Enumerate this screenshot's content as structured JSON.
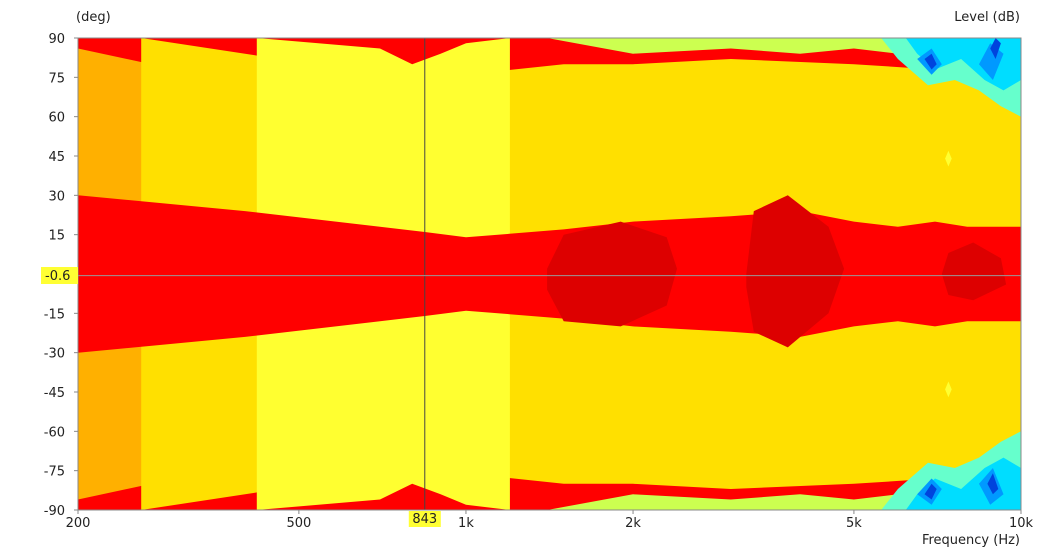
{
  "chart_data": {
    "type": "heatmap",
    "title": "",
    "y_unit_label": "(deg)",
    "level_label": "Level  (dB)",
    "xlabel": "Frequency  (Hz)",
    "x_scale": "log",
    "xlim": [
      200,
      10000
    ],
    "ylim": [
      -90,
      90
    ],
    "x_ticks": [
      {
        "value": 200,
        "label": "200"
      },
      {
        "value": 500,
        "label": "500"
      },
      {
        "value": 1000,
        "label": "1k"
      },
      {
        "value": 2000,
        "label": "2k"
      },
      {
        "value": 5000,
        "label": "5k"
      },
      {
        "value": 10000,
        "label": "10k"
      }
    ],
    "y_ticks": [
      {
        "value": 90,
        "label": "90"
      },
      {
        "value": 75,
        "label": "75"
      },
      {
        "value": 60,
        "label": "60"
      },
      {
        "value": 45,
        "label": "45"
      },
      {
        "value": 30,
        "label": "30"
      },
      {
        "value": 15,
        "label": "15"
      },
      {
        "value": -15,
        "label": "-15"
      },
      {
        "value": -30,
        "label": "-30"
      },
      {
        "value": -45,
        "label": "-45"
      },
      {
        "value": -60,
        "label": "-60"
      },
      {
        "value": -75,
        "label": "-75"
      },
      {
        "value": -90,
        "label": "-90"
      }
    ],
    "cursor": {
      "x": 843,
      "x_label": "843",
      "y": -0.6,
      "y_label": "-0.6"
    },
    "level_colors": [
      "#dd0000",
      "#ff0000",
      "#ff5000",
      "#ff8000",
      "#ffb000",
      "#ffe000",
      "#ffff30",
      "#ccff50",
      "#66ffcc",
      "#00ddff",
      "#0099ff",
      "#0044dd"
    ],
    "contours": [
      {
        "band": 2,
        "points": [
          [
            200,
            52
          ],
          [
            300,
            45
          ],
          [
            500,
            38
          ],
          [
            700,
            34
          ],
          [
            843,
            33
          ],
          [
            1000,
            34
          ],
          [
            1500,
            36
          ],
          [
            2000,
            38
          ],
          [
            3000,
            40
          ],
          [
            5000,
            42
          ],
          [
            7000,
            43
          ],
          [
            10000,
            44
          ],
          [
            10000,
            -44
          ],
          [
            7000,
            -43
          ],
          [
            5000,
            -42
          ],
          [
            3000,
            -40
          ],
          [
            2000,
            -38
          ],
          [
            1500,
            -36
          ],
          [
            1000,
            -34
          ],
          [
            843,
            -33
          ],
          [
            700,
            -34
          ],
          [
            500,
            -38
          ],
          [
            300,
            -45
          ],
          [
            200,
            -52
          ]
        ]
      },
      {
        "band": 3,
        "points": [
          [
            200,
            70
          ],
          [
            300,
            62
          ],
          [
            500,
            54
          ],
          [
            700,
            48
          ],
          [
            780,
            40
          ],
          [
            843,
            44
          ],
          [
            1000,
            48
          ],
          [
            1500,
            52
          ],
          [
            2000,
            56
          ],
          [
            3000,
            58
          ],
          [
            5000,
            58
          ],
          [
            7000,
            60
          ],
          [
            10000,
            62
          ],
          [
            10000,
            -62
          ],
          [
            7000,
            -60
          ],
          [
            5000,
            -58
          ],
          [
            3000,
            -58
          ],
          [
            2000,
            -56
          ],
          [
            1500,
            -52
          ],
          [
            1000,
            -48
          ],
          [
            843,
            -44
          ],
          [
            780,
            -40
          ],
          [
            700,
            -48
          ],
          [
            500,
            -54
          ],
          [
            300,
            -62
          ],
          [
            200,
            -70
          ]
        ]
      },
      {
        "band": 4,
        "points": [
          [
            200,
            86
          ],
          [
            300,
            78
          ],
          [
            500,
            70
          ],
          [
            700,
            64
          ],
          [
            780,
            52
          ],
          [
            843,
            58
          ],
          [
            1000,
            64
          ],
          [
            1500,
            68
          ],
          [
            2000,
            70
          ],
          [
            3000,
            72
          ],
          [
            5000,
            70
          ],
          [
            7000,
            70
          ],
          [
            10000,
            72
          ],
          [
            10000,
            -72
          ],
          [
            7000,
            -70
          ],
          [
            5000,
            -70
          ],
          [
            3000,
            -72
          ],
          [
            2000,
            -70
          ],
          [
            1500,
            -68
          ],
          [
            1000,
            -64
          ],
          [
            843,
            -58
          ],
          [
            780,
            -52
          ],
          [
            700,
            -64
          ],
          [
            500,
            -70
          ],
          [
            300,
            -78
          ],
          [
            200,
            -86
          ]
        ]
      },
      {
        "band": 5,
        "points": [
          [
            260,
            90
          ],
          [
            400,
            84
          ],
          [
            600,
            78
          ],
          [
            760,
            66
          ],
          [
            843,
            70
          ],
          [
            1000,
            76
          ],
          [
            1500,
            80
          ],
          [
            2000,
            80
          ],
          [
            3000,
            82
          ],
          [
            5000,
            80
          ],
          [
            7000,
            78
          ],
          [
            10000,
            80
          ],
          [
            10000,
            -80
          ],
          [
            7000,
            -78
          ],
          [
            5000,
            -80
          ],
          [
            3000,
            -82
          ],
          [
            2000,
            -80
          ],
          [
            1500,
            -80
          ],
          [
            1000,
            -76
          ],
          [
            843,
            -70
          ],
          [
            760,
            -66
          ],
          [
            600,
            -78
          ],
          [
            400,
            -84
          ],
          [
            260,
            -90
          ]
        ]
      },
      {
        "band": 6,
        "points": [
          [
            420,
            90
          ],
          [
            700,
            86
          ],
          [
            800,
            80
          ],
          [
            900,
            84
          ],
          [
            1000,
            88
          ],
          [
            1200,
            90
          ],
          [
            1200,
            -90
          ],
          [
            1000,
            -88
          ],
          [
            900,
            -84
          ],
          [
            800,
            -80
          ],
          [
            700,
            -86
          ],
          [
            420,
            -90
          ]
        ]
      },
      {
        "band": 1,
        "points": [
          [
            200,
            30
          ],
          [
            400,
            24
          ],
          [
            700,
            18
          ],
          [
            843,
            16
          ],
          [
            1000,
            14
          ],
          [
            1500,
            17
          ],
          [
            2000,
            20
          ],
          [
            3000,
            22
          ],
          [
            4000,
            24
          ],
          [
            5000,
            20
          ],
          [
            6000,
            18
          ],
          [
            7000,
            20
          ],
          [
            8000,
            18
          ],
          [
            10000,
            18
          ],
          [
            10000,
            -18
          ],
          [
            8000,
            -18
          ],
          [
            7000,
            -20
          ],
          [
            6000,
            -18
          ],
          [
            5000,
            -20
          ],
          [
            4000,
            -24
          ],
          [
            3000,
            -22
          ],
          [
            2000,
            -20
          ],
          [
            1500,
            -17
          ],
          [
            1000,
            -14
          ],
          [
            843,
            -16
          ],
          [
            700,
            -18
          ],
          [
            400,
            -24
          ],
          [
            200,
            -30
          ]
        ]
      },
      {
        "band": 0,
        "points": [
          [
            1400,
            2
          ],
          [
            1500,
            15
          ],
          [
            1900,
            20
          ],
          [
            2300,
            14
          ],
          [
            2400,
            2
          ],
          [
            2300,
            -12
          ],
          [
            1900,
            -20
          ],
          [
            1500,
            -18
          ],
          [
            1400,
            -6
          ]
        ]
      },
      {
        "band": 0,
        "points": [
          [
            3200,
            0
          ],
          [
            3300,
            24
          ],
          [
            3800,
            30
          ],
          [
            4500,
            18
          ],
          [
            4800,
            2
          ],
          [
            4500,
            -15
          ],
          [
            3800,
            -28
          ],
          [
            3300,
            -22
          ],
          [
            3200,
            -5
          ]
        ]
      },
      {
        "band": 0,
        "points": [
          [
            7200,
            0
          ],
          [
            7400,
            8
          ],
          [
            8200,
            12
          ],
          [
            9200,
            6
          ],
          [
            9400,
            -4
          ],
          [
            8200,
            -10
          ],
          [
            7400,
            -8
          ]
        ]
      },
      {
        "band": 7,
        "points": [
          [
            1400,
            90
          ],
          [
            2000,
            84
          ],
          [
            3000,
            86
          ],
          [
            4000,
            84
          ],
          [
            5000,
            86
          ],
          [
            6000,
            84
          ],
          [
            7000,
            84
          ],
          [
            8000,
            82
          ],
          [
            10000,
            80
          ],
          [
            10000,
            90
          ]
        ]
      },
      {
        "band": 7,
        "points": [
          [
            1400,
            -90
          ],
          [
            2000,
            -84
          ],
          [
            3000,
            -86
          ],
          [
            4000,
            -84
          ],
          [
            5000,
            -86
          ],
          [
            6000,
            -84
          ],
          [
            7000,
            -84
          ],
          [
            8000,
            -82
          ],
          [
            10000,
            -80
          ],
          [
            10000,
            -90
          ]
        ]
      },
      {
        "band": 8,
        "points": [
          [
            5600,
            90
          ],
          [
            6000,
            82
          ],
          [
            6800,
            72
          ],
          [
            7600,
            74
          ],
          [
            8400,
            70
          ],
          [
            9200,
            64
          ],
          [
            10000,
            60
          ],
          [
            10000,
            90
          ]
        ]
      },
      {
        "band": 8,
        "points": [
          [
            5600,
            -90
          ],
          [
            6000,
            -82
          ],
          [
            6800,
            -72
          ],
          [
            7600,
            -74
          ],
          [
            8400,
            -70
          ],
          [
            9200,
            -64
          ],
          [
            10000,
            -60
          ],
          [
            10000,
            -90
          ]
        ]
      },
      {
        "band": 9,
        "points": [
          [
            6200,
            90
          ],
          [
            6500,
            84
          ],
          [
            7000,
            78
          ],
          [
            7800,
            82
          ],
          [
            8600,
            74
          ],
          [
            9300,
            70
          ],
          [
            10000,
            74
          ],
          [
            10000,
            90
          ]
        ]
      },
      {
        "band": 9,
        "points": [
          [
            6200,
            -90
          ],
          [
            6500,
            -84
          ],
          [
            7000,
            -78
          ],
          [
            7800,
            -82
          ],
          [
            8600,
            -74
          ],
          [
            9300,
            -70
          ],
          [
            10000,
            -74
          ],
          [
            10000,
            -90
          ]
        ]
      },
      {
        "band": 10,
        "points": [
          [
            6500,
            82
          ],
          [
            6900,
            86
          ],
          [
            7200,
            80
          ],
          [
            6900,
            76
          ]
        ]
      },
      {
        "band": 10,
        "points": [
          [
            8400,
            80
          ],
          [
            8800,
            88
          ],
          [
            9300,
            84
          ],
          [
            8900,
            74
          ]
        ]
      },
      {
        "band": 10,
        "points": [
          [
            6500,
            -84
          ],
          [
            6900,
            -88
          ],
          [
            7200,
            -82
          ],
          [
            6900,
            -78
          ]
        ]
      },
      {
        "band": 10,
        "points": [
          [
            8400,
            -80
          ],
          [
            8800,
            -88
          ],
          [
            9300,
            -84
          ],
          [
            8900,
            -74
          ]
        ]
      },
      {
        "band": 11,
        "points": [
          [
            6700,
            82
          ],
          [
            6900,
            84
          ],
          [
            7050,
            80
          ],
          [
            6900,
            78
          ]
        ]
      },
      {
        "band": 11,
        "points": [
          [
            8800,
            86
          ],
          [
            9000,
            90
          ],
          [
            9200,
            88
          ],
          [
            9000,
            82
          ]
        ]
      },
      {
        "band": 11,
        "points": [
          [
            6700,
            -84
          ],
          [
            6900,
            -86
          ],
          [
            7050,
            -82
          ],
          [
            6900,
            -80
          ]
        ]
      },
      {
        "band": 11,
        "points": [
          [
            8700,
            -80
          ],
          [
            8900,
            -84
          ],
          [
            9100,
            -82
          ],
          [
            8900,
            -76
          ]
        ]
      },
      {
        "band": 5,
        "points": [
          [
            7100,
            44
          ],
          [
            7400,
            50
          ],
          [
            7700,
            44
          ],
          [
            7400,
            38
          ]
        ]
      },
      {
        "band": 6,
        "points": [
          [
            7300,
            44
          ],
          [
            7400,
            47
          ],
          [
            7500,
            44
          ],
          [
            7400,
            41
          ]
        ]
      },
      {
        "band": 5,
        "points": [
          [
            8200,
            36
          ],
          [
            8500,
            42
          ],
          [
            8800,
            36
          ],
          [
            8500,
            30
          ]
        ]
      },
      {
        "band": 5,
        "points": [
          [
            7100,
            -44
          ],
          [
            7400,
            -50
          ],
          [
            7700,
            -44
          ],
          [
            7400,
            -38
          ]
        ]
      },
      {
        "band": 6,
        "points": [
          [
            7300,
            -44
          ],
          [
            7400,
            -47
          ],
          [
            7500,
            -44
          ],
          [
            7400,
            -41
          ]
        ]
      },
      {
        "band": 5,
        "points": [
          [
            8200,
            -36
          ],
          [
            8500,
            -42
          ],
          [
            8800,
            -36
          ],
          [
            8500,
            -30
          ]
        ]
      }
    ]
  }
}
